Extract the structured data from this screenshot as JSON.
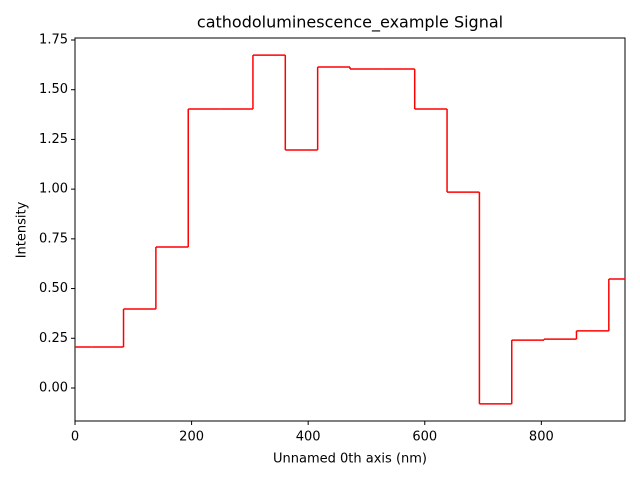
{
  "chart_data": {
    "type": "step",
    "title": "cathodoluminescence_example Signal",
    "x_label": "Unnamed 0th axis (nm)",
    "y_label": "Intensity",
    "x": [
      0,
      55.5,
      111,
      166.5,
      222,
      277.5,
      333,
      388.5,
      444,
      499.5,
      555,
      610.5,
      666,
      721.5,
      777,
      832.5,
      888,
      943.5
    ],
    "values": [
      0.206,
      0.206,
      0.397,
      0.709,
      1.403,
      1.403,
      1.674,
      1.197,
      1.614,
      1.604,
      1.604,
      1.403,
      0.985,
      -0.08,
      0.241,
      0.246,
      0.287,
      0.548
    ],
    "color": "#ff0000",
    "xlim": [
      0,
      943.5
    ],
    "xticks": [
      0,
      200,
      400,
      600,
      800
    ],
    "ylim": [
      -0.166,
      1.76
    ],
    "yticks": [
      {
        "value": 0,
        "label": "0.00"
      },
      {
        "value": 0.25,
        "label": "0.25"
      },
      {
        "value": 0.5,
        "label": "0.50"
      },
      {
        "value": 0.75,
        "label": "0.75"
      },
      {
        "value": 1,
        "label": "1.00"
      },
      {
        "value": 1.25,
        "label": "1.25"
      },
      {
        "value": 1.5,
        "label": "1.50"
      },
      {
        "value": 1.75,
        "label": "1.75"
      }
    ]
  }
}
